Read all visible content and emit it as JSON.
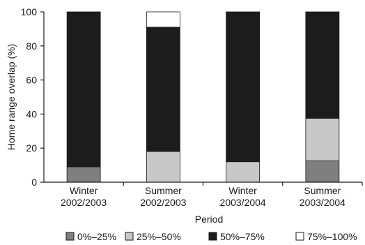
{
  "chart_data": {
    "type": "bar",
    "stacked": true,
    "title": "",
    "xlabel": "Period",
    "ylabel": "Home range overlap (%)",
    "ylim": [
      0,
      100
    ],
    "yticks": [
      "0",
      "20",
      "40",
      "60",
      "80",
      "100"
    ],
    "categories": [
      [
        "Winter",
        "2002/2003"
      ],
      [
        "Summer",
        "2002/2003"
      ],
      [
        "Winter",
        "2003/2004"
      ],
      [
        "Summer",
        "2003/2004"
      ]
    ],
    "series": [
      {
        "name": "0%–25%",
        "color": "#7f7f7f",
        "values": [
          9,
          0,
          0,
          12.5
        ]
      },
      {
        "name": "25%–50%",
        "color": "#c8c8c8",
        "values": [
          0,
          18,
          12,
          25
        ]
      },
      {
        "name": "50%–75%",
        "color": "#1c1c1c",
        "values": [
          91,
          73,
          88,
          62.5
        ]
      },
      {
        "name": "75%–100%",
        "color": "#ffffff",
        "values": [
          0,
          9,
          0,
          0
        ]
      }
    ],
    "grid": false,
    "legend_position": "bottom"
  }
}
